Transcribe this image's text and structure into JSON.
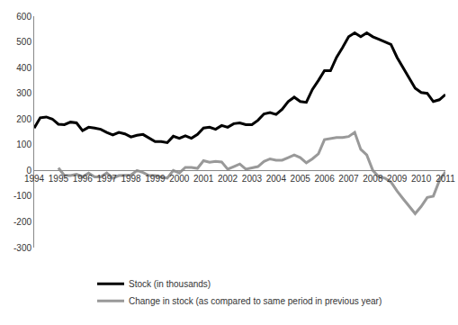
{
  "chart_data": {
    "type": "line",
    "categories": [
      "1994",
      null,
      null,
      null,
      "1995",
      null,
      null,
      null,
      "1996",
      null,
      null,
      null,
      "1997",
      null,
      null,
      null,
      "1998",
      null,
      null,
      null,
      "1999",
      null,
      null,
      null,
      "2000",
      null,
      null,
      null,
      "2001",
      null,
      null,
      null,
      "2002",
      null,
      null,
      null,
      "2003",
      null,
      null,
      null,
      "2004",
      null,
      null,
      null,
      "2005",
      null,
      null,
      null,
      "2006",
      null,
      null,
      null,
      "2007",
      null,
      null,
      null,
      "2008",
      null,
      null,
      null,
      "2009",
      null,
      null,
      null,
      "2010",
      null,
      null,
      null,
      "2011"
    ],
    "series": [
      {
        "name": "Stock (in thousands)",
        "color": "#000000",
        "values": [
          165,
          205,
          208,
          200,
          180,
          178,
          188,
          185,
          155,
          168,
          165,
          160,
          148,
          138,
          148,
          142,
          130,
          137,
          140,
          125,
          112,
          112,
          108,
          133,
          125,
          135,
          125,
          140,
          165,
          168,
          160,
          175,
          168,
          182,
          185,
          178,
          178,
          195,
          220,
          225,
          218,
          238,
          268,
          285,
          268,
          265,
          315,
          350,
          388,
          388,
          440,
          478,
          520,
          535,
          520,
          535,
          520,
          510,
          500,
          490,
          440,
          400,
          360,
          320,
          303,
          300,
          268,
          275,
          295
        ]
      },
      {
        "name": "Change in stock (as compared to same period in previous year)",
        "color": "#999999",
        "values": [
          null,
          null,
          null,
          null,
          10,
          -20,
          -20,
          -15,
          -25,
          -10,
          -25,
          -25,
          -10,
          -30,
          -20,
          -20,
          -18,
          0,
          -8,
          -20,
          -20,
          -25,
          -30,
          0,
          -10,
          12,
          12,
          8,
          38,
          32,
          35,
          33,
          5,
          15,
          25,
          5,
          10,
          15,
          35,
          45,
          40,
          40,
          50,
          60,
          50,
          30,
          45,
          65,
          120,
          125,
          128,
          128,
          132,
          148,
          82,
          60,
          0,
          -25,
          -30,
          -45,
          -80,
          -110,
          -140,
          -168,
          -140,
          -105,
          -100,
          -40,
          -5
        ]
      }
    ],
    "ylim": [
      -300,
      600
    ],
    "yticks": [
      -300,
      -200,
      -100,
      0,
      100,
      200,
      300,
      400,
      500,
      600
    ],
    "grid": false,
    "legend": "bottom"
  }
}
